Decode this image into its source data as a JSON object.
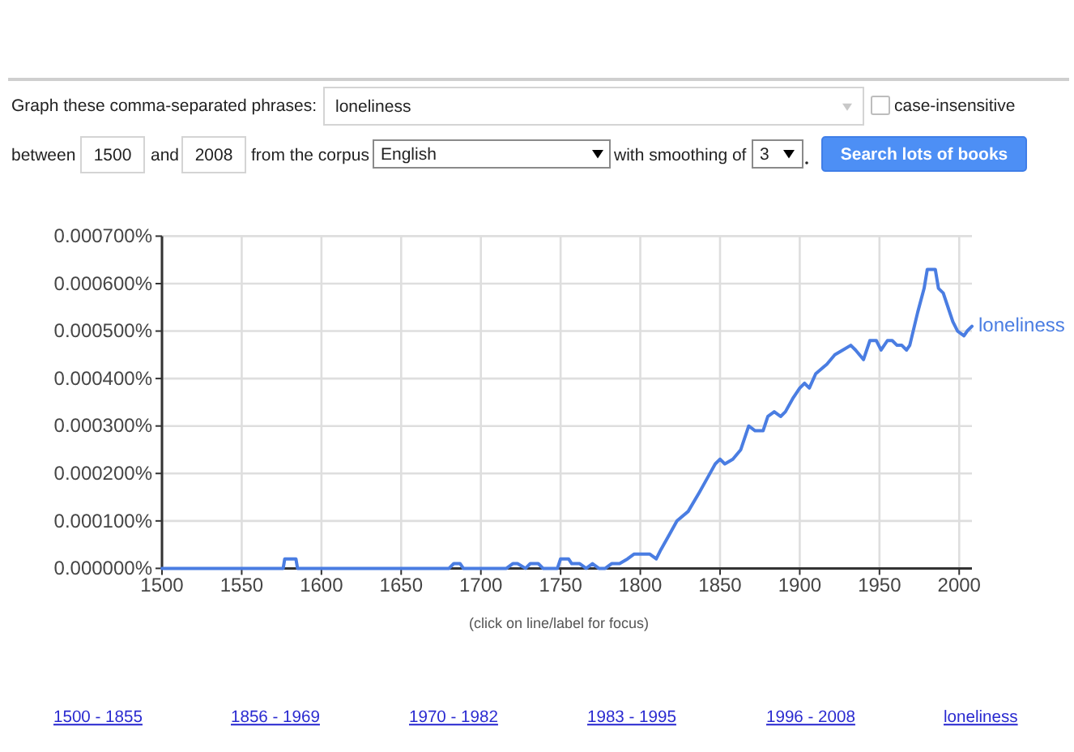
{
  "chart_data": {
    "type": "line",
    "annotations": [
      "Graph these comma-separated phrases:",
      "loneliness",
      "case-insensitive",
      "between",
      "1500",
      "and",
      "2008",
      "from the corpus",
      "English",
      "with smoothing of",
      "3",
      "Search lots of books",
      "(click on line/label for focus)",
      "1500 - 1855",
      "1856 - 1969",
      "1970 - 1982",
      "1983 - 1995",
      "1996 - 2008",
      "loneliness"
    ],
    "x": [
      1500,
      1576,
      1577,
      1584,
      1585,
      1680,
      1683,
      1687,
      1689,
      1716,
      1720,
      1723,
      1728,
      1731,
      1736,
      1739,
      1748,
      1750,
      1755,
      1757,
      1762,
      1766,
      1770,
      1774,
      1778,
      1782,
      1787,
      1792,
      1796,
      1801,
      1806,
      1810,
      1813,
      1818,
      1823,
      1830,
      1837,
      1842,
      1847,
      1850,
      1853,
      1858,
      1863,
      1868,
      1872,
      1877,
      1880,
      1884,
      1888,
      1891,
      1896,
      1900,
      1903,
      1906,
      1910,
      1917,
      1922,
      1927,
      1932,
      1935,
      1940,
      1944,
      1948,
      1951,
      1955,
      1958,
      1961,
      1964,
      1967,
      1969,
      1974,
      1978,
      1980,
      1983,
      1985,
      1987,
      1990,
      1993,
      1996,
      1999,
      2003,
      2005,
      2008
    ],
    "series": [
      {
        "name": "loneliness",
        "color": "#4a7de2",
        "values": [
          0,
          0,
          2e-05,
          2e-05,
          0,
          0,
          1e-05,
          1e-05,
          0,
          0,
          1e-05,
          1e-05,
          0,
          1e-05,
          1e-05,
          0,
          0,
          2e-05,
          2e-05,
          1e-05,
          1e-05,
          0,
          1e-05,
          0,
          0,
          1e-05,
          1e-05,
          2e-05,
          3e-05,
          3e-05,
          3e-05,
          2e-05,
          4e-05,
          7e-05,
          0.0001,
          0.00012,
          0.00016,
          0.00019,
          0.00022,
          0.00023,
          0.00022,
          0.00023,
          0.00025,
          0.0003,
          0.00029,
          0.00029,
          0.00032,
          0.00033,
          0.00032,
          0.00033,
          0.00036,
          0.00038,
          0.00039,
          0.00038,
          0.00041,
          0.00043,
          0.00045,
          0.00046,
          0.00047,
          0.00046,
          0.00044,
          0.00048,
          0.00048,
          0.00046,
          0.00048,
          0.00048,
          0.00047,
          0.00047,
          0.00046,
          0.00047,
          0.00054,
          0.00059,
          0.00063,
          0.00063,
          0.00063,
          0.00059,
          0.00058,
          0.00055,
          0.00052,
          0.0005,
          0.00049,
          0.0005,
          0.00051
        ]
      }
    ],
    "xlim": [
      1500,
      2008
    ],
    "xticks": [
      1500,
      1550,
      1600,
      1650,
      1700,
      1750,
      1800,
      1850,
      1900,
      1950,
      2000
    ],
    "ylim": [
      0,
      0.0007
    ],
    "yticks": [
      {
        "value": 0,
        "label": "0.000000%"
      },
      {
        "value": 0.0001,
        "label": "0.000100%"
      },
      {
        "value": 0.0002,
        "label": "0.000200%"
      },
      {
        "value": 0.0003,
        "label": "0.000300%"
      },
      {
        "value": 0.0004,
        "label": "0.000400%"
      },
      {
        "value": 0.0005,
        "label": "0.000500%"
      },
      {
        "value": 0.0006,
        "label": "0.000600%"
      },
      {
        "value": 0.0007,
        "label": "0.000700%"
      }
    ],
    "grid": true
  }
}
